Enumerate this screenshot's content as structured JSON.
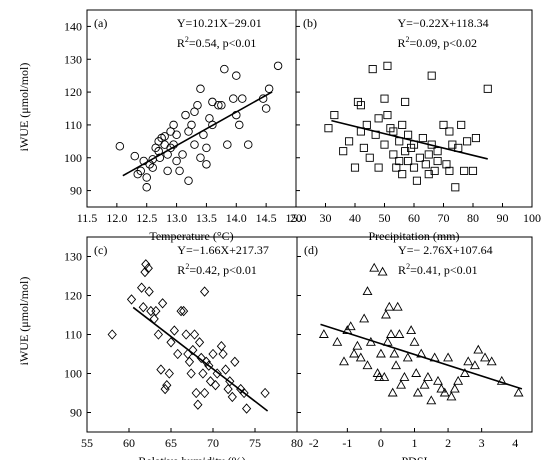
{
  "ylabel": "iWUE (μmol/mol)",
  "chart_data": [
    {
      "type": "scatter",
      "panel": "(a)",
      "marker": "circle",
      "xlabel": "Temperature (°C)",
      "ylabel": "iWUE (μmol/mol)",
      "xlim": [
        11.5,
        15.0
      ],
      "ylim": [
        85,
        145
      ],
      "xticks": [
        "11.5",
        "12.0",
        "12.5",
        "13.0",
        "13.5",
        "14.0",
        "14.5",
        "15.0"
      ],
      "yticks": [
        "90",
        "100",
        "110",
        "120",
        "130",
        "140"
      ],
      "equation": "Y=10.21X−29.01",
      "r2_label": "R",
      "r2_value": "=0.54,  p<0.01",
      "fit": {
        "slope": 10.21,
        "intercept": -29.01,
        "x_range": [
          12.1,
          14.6
        ]
      },
      "points": [
        [
          12.05,
          103.5
        ],
        [
          12.3,
          100.5
        ],
        [
          12.35,
          95
        ],
        [
          12.4,
          96
        ],
        [
          12.45,
          99
        ],
        [
          12.5,
          94
        ],
        [
          12.5,
          91
        ],
        [
          12.55,
          98
        ],
        [
          12.6,
          97
        ],
        [
          12.6,
          99.5
        ],
        [
          12.65,
          103
        ],
        [
          12.7,
          105
        ],
        [
          12.7,
          102
        ],
        [
          12.72,
          100
        ],
        [
          12.75,
          106
        ],
        [
          12.8,
          106.5
        ],
        [
          12.8,
          104
        ],
        [
          12.85,
          96
        ],
        [
          12.85,
          101
        ],
        [
          12.9,
          103
        ],
        [
          12.9,
          108
        ],
        [
          12.95,
          104
        ],
        [
          12.95,
          110
        ],
        [
          13.0,
          107
        ],
        [
          13.0,
          99
        ],
        [
          13.05,
          96
        ],
        [
          13.1,
          101
        ],
        [
          13.15,
          113
        ],
        [
          13.2,
          108
        ],
        [
          13.2,
          93
        ],
        [
          13.25,
          110
        ],
        [
          13.3,
          114
        ],
        [
          13.3,
          104
        ],
        [
          13.35,
          116
        ],
        [
          13.4,
          121
        ],
        [
          13.4,
          100
        ],
        [
          13.45,
          107
        ],
        [
          13.5,
          103
        ],
        [
          13.5,
          98
        ],
        [
          13.55,
          112
        ],
        [
          13.6,
          110
        ],
        [
          13.6,
          117
        ],
        [
          13.7,
          116
        ],
        [
          13.75,
          116
        ],
        [
          13.8,
          127
        ],
        [
          13.85,
          104
        ],
        [
          13.95,
          118
        ],
        [
          14.0,
          125
        ],
        [
          14.0,
          113
        ],
        [
          14.05,
          110
        ],
        [
          14.1,
          118
        ],
        [
          14.2,
          104
        ],
        [
          14.45,
          118
        ],
        [
          14.5,
          115
        ],
        [
          14.55,
          121
        ],
        [
          14.7,
          128
        ]
      ]
    },
    {
      "type": "scatter",
      "panel": "(b)",
      "marker": "square",
      "xlabel": "Precipitation (mm)",
      "ylabel": "",
      "xlim": [
        20,
        100
      ],
      "ylim": [
        85,
        145
      ],
      "xticks": [
        "20",
        "30",
        "40",
        "50",
        "60",
        "70",
        "80",
        "90",
        "100"
      ],
      "yticks": [
        "90",
        "100",
        "110",
        "120",
        "130",
        "140"
      ],
      "equation": "Y=−0.22X+118.34",
      "r2_label": "R",
      "r2_value": "=0.09,  p<0.02",
      "fit": {
        "slope": -0.22,
        "intercept": 118.34,
        "x_range": [
          32,
          85
        ]
      },
      "points": [
        [
          31,
          109
        ],
        [
          33,
          113
        ],
        [
          36,
          102
        ],
        [
          38,
          105
        ],
        [
          40,
          97
        ],
        [
          41,
          117
        ],
        [
          42,
          108
        ],
        [
          42,
          116
        ],
        [
          43,
          103
        ],
        [
          44,
          110
        ],
        [
          45,
          100
        ],
        [
          46,
          127
        ],
        [
          47,
          107
        ],
        [
          48,
          112
        ],
        [
          48,
          97
        ],
        [
          50,
          118
        ],
        [
          50,
          104
        ],
        [
          51,
          113
        ],
        [
          51,
          128
        ],
        [
          52,
          109
        ],
        [
          53,
          101
        ],
        [
          53,
          108
        ],
        [
          54,
          97
        ],
        [
          55,
          105
        ],
        [
          55,
          99
        ],
        [
          56,
          110
        ],
        [
          56,
          95
        ],
        [
          57,
          117
        ],
        [
          57,
          102
        ],
        [
          58,
          107
        ],
        [
          58,
          99
        ],
        [
          59,
          103
        ],
        [
          60,
          97
        ],
        [
          60,
          104
        ],
        [
          61,
          93
        ],
        [
          62,
          100
        ],
        [
          63,
          106
        ],
        [
          64,
          98
        ],
        [
          65,
          95
        ],
        [
          65,
          101
        ],
        [
          66,
          125
        ],
        [
          66,
          104
        ],
        [
          67,
          96
        ],
        [
          68,
          102
        ],
        [
          68,
          99
        ],
        [
          70,
          110
        ],
        [
          71,
          98
        ],
        [
          72,
          96
        ],
        [
          72,
          108
        ],
        [
          73,
          104
        ],
        [
          74,
          91
        ],
        [
          75,
          103
        ],
        [
          76,
          110
        ],
        [
          77,
          96
        ],
        [
          78,
          105
        ],
        [
          80,
          96
        ],
        [
          81,
          106
        ],
        [
          85,
          121
        ]
      ]
    },
    {
      "type": "scatter",
      "panel": "(c)",
      "marker": "diamond",
      "xlabel": "Relative humidity (%)",
      "ylabel": "iWUE (μmol/mol)",
      "xlim": [
        55,
        80
      ],
      "ylim": [
        85,
        135
      ],
      "xticks": [
        "55",
        "60",
        "65",
        "70",
        "75",
        "80"
      ],
      "yticks": [
        "90",
        "100",
        "110",
        "120",
        "130"
      ],
      "equation": "Y=−1.66X+217.37",
      "r2_label": "R",
      "r2_value": "=0.42, p<0.01",
      "fit": {
        "slope": -1.66,
        "intercept": 217.37,
        "x_range": [
          60.5,
          76.5
        ]
      },
      "points": [
        [
          58,
          110
        ],
        [
          60.3,
          119
        ],
        [
          61.5,
          122
        ],
        [
          61.7,
          117
        ],
        [
          61.9,
          126
        ],
        [
          62,
          128
        ],
        [
          62.3,
          127
        ],
        [
          62.4,
          121
        ],
        [
          62.6,
          116
        ],
        [
          63,
          114
        ],
        [
          63.2,
          116
        ],
        [
          63.5,
          110
        ],
        [
          63.8,
          101
        ],
        [
          64,
          118
        ],
        [
          64.3,
          96
        ],
        [
          64.5,
          97
        ],
        [
          64.8,
          100
        ],
        [
          65,
          108
        ],
        [
          65.4,
          111
        ],
        [
          65.8,
          105
        ],
        [
          66.2,
          116
        ],
        [
          66.5,
          116
        ],
        [
          66.8,
          110
        ],
        [
          67,
          105
        ],
        [
          67.2,
          103
        ],
        [
          67.4,
          100
        ],
        [
          67.6,
          106
        ],
        [
          67.8,
          110
        ],
        [
          68,
          95
        ],
        [
          68.2,
          92
        ],
        [
          68.4,
          108
        ],
        [
          68.6,
          104
        ],
        [
          68.8,
          100
        ],
        [
          69,
          95
        ],
        [
          69,
          121
        ],
        [
          69.2,
          103
        ],
        [
          69.5,
          102
        ],
        [
          69.7,
          98
        ],
        [
          70,
          105
        ],
        [
          70.3,
          97
        ],
        [
          70.5,
          100
        ],
        [
          71,
          107
        ],
        [
          71.2,
          105
        ],
        [
          71.5,
          101
        ],
        [
          71.8,
          96
        ],
        [
          72,
          98
        ],
        [
          72.3,
          94
        ],
        [
          72.6,
          103
        ],
        [
          73.3,
          96
        ],
        [
          73.7,
          95
        ],
        [
          74,
          91
        ],
        [
          76.2,
          95
        ]
      ]
    },
    {
      "type": "scatter",
      "panel": "(d)",
      "marker": "triangle",
      "xlabel": "PDSI",
      "ylabel": "",
      "xlim": [
        -2.5,
        4.5
      ],
      "ylim": [
        85,
        135
      ],
      "xticks": [
        "-2",
        "-1",
        "0",
        "1",
        "2",
        "3",
        "4"
      ],
      "yticks": [
        "90",
        "100",
        "110",
        "120",
        "130"
      ],
      "equation": "Y=− 2.76X+107.64",
      "r2_label": "R",
      "r2_value": "=0.41, p<0.01",
      "fit": {
        "slope": -2.76,
        "intercept": 107.64,
        "x_range": [
          -1.8,
          4.2
        ]
      },
      "points": [
        [
          -1.7,
          110
        ],
        [
          -1.3,
          108
        ],
        [
          -1.1,
          103
        ],
        [
          -1.0,
          111
        ],
        [
          -0.9,
          112
        ],
        [
          -0.8,
          105
        ],
        [
          -0.7,
          107
        ],
        [
          -0.6,
          104
        ],
        [
          -0.5,
          114
        ],
        [
          -0.4,
          121
        ],
        [
          -0.4,
          102
        ],
        [
          -0.3,
          108
        ],
        [
          -0.2,
          127
        ],
        [
          -0.1,
          100
        ],
        [
          -0.05,
          99
        ],
        [
          0.0,
          105
        ],
        [
          0.05,
          126
        ],
        [
          0.1,
          99
        ],
        [
          0.15,
          115
        ],
        [
          0.2,
          108
        ],
        [
          0.25,
          117
        ],
        [
          0.3,
          110
        ],
        [
          0.35,
          95
        ],
        [
          0.4,
          105
        ],
        [
          0.45,
          102
        ],
        [
          0.5,
          117
        ],
        [
          0.55,
          110
        ],
        [
          0.6,
          97
        ],
        [
          0.7,
          99
        ],
        [
          0.8,
          104
        ],
        [
          0.9,
          111
        ],
        [
          1.0,
          108
        ],
        [
          1.05,
          100
        ],
        [
          1.1,
          95
        ],
        [
          1.2,
          105
        ],
        [
          1.3,
          97
        ],
        [
          1.4,
          99
        ],
        [
          1.5,
          93
        ],
        [
          1.6,
          104
        ],
        [
          1.7,
          98
        ],
        [
          1.8,
          96
        ],
        [
          1.9,
          95
        ],
        [
          2.0,
          104
        ],
        [
          2.1,
          94
        ],
        [
          2.2,
          96
        ],
        [
          2.3,
          98
        ],
        [
          2.5,
          100
        ],
        [
          2.6,
          103
        ],
        [
          2.8,
          102
        ],
        [
          2.9,
          106
        ],
        [
          3.1,
          104
        ],
        [
          3.3,
          103
        ],
        [
          3.6,
          98
        ],
        [
          4.1,
          95
        ]
      ]
    }
  ]
}
